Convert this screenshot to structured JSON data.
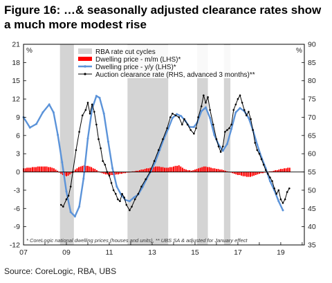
{
  "title": "Figure 16: …& seasonally adjusted clearance rates show a much more modest rise",
  "source": "Source:  CoreLogic, RBA, UBS",
  "chart_data": {
    "type": "line",
    "footnote": "* CoreLogic national dwelling prices (houses and units), ** UBS SA & adjusted for January effect",
    "left_axis": {
      "unit": "%",
      "ylim": [
        -12,
        21
      ],
      "ticks": [
        21,
        18,
        15,
        12,
        9,
        6,
        3,
        0,
        -3,
        -6,
        -9,
        -12
      ]
    },
    "right_axis": {
      "unit": "%",
      "ylim": [
        35,
        90
      ],
      "ticks": [
        90,
        85,
        80,
        75,
        70,
        65,
        60,
        55,
        50,
        45,
        40,
        35
      ]
    },
    "x_axis": {
      "xlim": [
        2007.0,
        2020.1
      ],
      "tick_labels": [
        "07",
        "09",
        "11",
        "13",
        "15",
        "17",
        "19"
      ],
      "tick_years": [
        2007,
        2009,
        2011,
        2013,
        2015,
        2017,
        2019
      ]
    },
    "legend": {
      "position": "top-center",
      "entries": [
        "RBA rate cut cycles",
        "Dwelling price - m/m (LHS)*",
        "Dwelling price - y/y (LHS)*",
        "Auction clearance rate (RHS, advanced 3 months)**"
      ]
    },
    "colors": {
      "rate_cut": "#d4d4d4",
      "mm": "#ff0000",
      "yy": "#5b93d9",
      "auction": "#000000"
    },
    "rate_cut_cycles": [
      [
        2008.7,
        2009.35
      ],
      [
        2011.85,
        2013.75
      ],
      [
        2015.1,
        2015.6
      ],
      [
        2016.35,
        2016.65
      ]
    ],
    "series": [
      {
        "name": "Dwelling price - y/y (LHS)*",
        "axis": "left",
        "points": [
          [
            2007.0,
            9.0
          ],
          [
            2007.3,
            7.3
          ],
          [
            2007.6,
            7.9
          ],
          [
            2007.9,
            9.8
          ],
          [
            2008.2,
            11.1
          ],
          [
            2008.4,
            9.8
          ],
          [
            2008.6,
            6.1
          ],
          [
            2008.8,
            1.6
          ],
          [
            2009.0,
            -3.2
          ],
          [
            2009.2,
            -6.6
          ],
          [
            2009.4,
            -7.3
          ],
          [
            2009.6,
            -5.7
          ],
          [
            2009.8,
            -1.1
          ],
          [
            2010.0,
            5.5
          ],
          [
            2010.2,
            10.4
          ],
          [
            2010.4,
            12.5
          ],
          [
            2010.55,
            12.2
          ],
          [
            2010.75,
            9.6
          ],
          [
            2010.95,
            5.0
          ],
          [
            2011.15,
            0.6
          ],
          [
            2011.35,
            -2.4
          ],
          [
            2011.55,
            -3.7
          ],
          [
            2011.75,
            -4.6
          ],
          [
            2011.95,
            -4.8
          ],
          [
            2012.15,
            -4.2
          ],
          [
            2012.35,
            -3.7
          ],
          [
            2012.55,
            -2.5
          ],
          [
            2012.75,
            -1.1
          ],
          [
            2012.95,
            0.2
          ],
          [
            2013.15,
            1.7
          ],
          [
            2013.35,
            3.6
          ],
          [
            2013.55,
            5.5
          ],
          [
            2013.75,
            7.1
          ],
          [
            2013.95,
            8.9
          ],
          [
            2014.15,
            9.5
          ],
          [
            2014.35,
            9.2
          ],
          [
            2014.55,
            8.4
          ],
          [
            2014.75,
            7.4
          ],
          [
            2014.95,
            7.4
          ],
          [
            2015.1,
            8.1
          ],
          [
            2015.3,
            10.0
          ],
          [
            2015.5,
            10.6
          ],
          [
            2015.7,
            8.9
          ],
          [
            2015.9,
            6.1
          ],
          [
            2016.1,
            4.5
          ],
          [
            2016.3,
            3.5
          ],
          [
            2016.5,
            4.6
          ],
          [
            2016.7,
            7.1
          ],
          [
            2016.9,
            9.8
          ],
          [
            2017.1,
            10.5
          ],
          [
            2017.3,
            10.0
          ],
          [
            2017.5,
            8.9
          ],
          [
            2017.7,
            6.9
          ],
          [
            2017.9,
            4.5
          ],
          [
            2018.1,
            2.4
          ],
          [
            2018.3,
            0.6
          ],
          [
            2018.5,
            -1.5
          ],
          [
            2018.7,
            -3.0
          ],
          [
            2018.9,
            -4.8
          ],
          [
            2019.1,
            -6.3
          ]
        ]
      },
      {
        "name": "Auction clearance rate (RHS, advanced 3 months)**",
        "axis": "right",
        "points": [
          [
            2008.75,
            46.0
          ],
          [
            2008.85,
            45.5
          ],
          [
            2009.0,
            47.5
          ],
          [
            2009.1,
            48.5
          ],
          [
            2009.2,
            51.0
          ],
          [
            2009.3,
            55.0
          ],
          [
            2009.45,
            61.0
          ],
          [
            2009.6,
            66.0
          ],
          [
            2009.75,
            70.5
          ],
          [
            2009.9,
            72.0
          ],
          [
            2010.0,
            74.0
          ],
          [
            2010.1,
            71.0
          ],
          [
            2010.2,
            73.5
          ],
          [
            2010.3,
            71.5
          ],
          [
            2010.4,
            68.0
          ],
          [
            2010.5,
            64.0
          ],
          [
            2010.6,
            61.5
          ],
          [
            2010.7,
            58.0
          ],
          [
            2010.8,
            57.0
          ],
          [
            2010.9,
            55.0
          ],
          [
            2011.0,
            54.0
          ],
          [
            2011.1,
            52.0
          ],
          [
            2011.2,
            50.0
          ],
          [
            2011.3,
            49.0
          ],
          [
            2011.4,
            47.5
          ],
          [
            2011.5,
            47.0
          ],
          [
            2011.6,
            49.0
          ],
          [
            2011.7,
            48.0
          ],
          [
            2011.8,
            46.0
          ],
          [
            2011.95,
            44.5
          ],
          [
            2012.05,
            45.5
          ],
          [
            2012.2,
            47.5
          ],
          [
            2012.35,
            49.0
          ],
          [
            2012.5,
            51.0
          ],
          [
            2012.7,
            53.0
          ],
          [
            2012.9,
            55.0
          ],
          [
            2013.1,
            58.0
          ],
          [
            2013.3,
            61.0
          ],
          [
            2013.5,
            64.0
          ],
          [
            2013.7,
            67.0
          ],
          [
            2013.85,
            70.0
          ],
          [
            2013.95,
            71.0
          ],
          [
            2014.1,
            70.5
          ],
          [
            2014.25,
            70.0
          ],
          [
            2014.4,
            68.0
          ],
          [
            2014.5,
            69.5
          ],
          [
            2014.65,
            68.0
          ],
          [
            2014.8,
            66.5
          ],
          [
            2014.95,
            65.5
          ],
          [
            2015.05,
            67.0
          ],
          [
            2015.15,
            70.0
          ],
          [
            2015.3,
            73.0
          ],
          [
            2015.4,
            76.0
          ],
          [
            2015.5,
            74.0
          ],
          [
            2015.6,
            75.5
          ],
          [
            2015.7,
            72.0
          ],
          [
            2015.85,
            68.0
          ],
          [
            2016.0,
            64.0
          ],
          [
            2016.1,
            62.0
          ],
          [
            2016.2,
            60.5
          ],
          [
            2016.3,
            62.0
          ],
          [
            2016.4,
            66.0
          ],
          [
            2016.5,
            66.5
          ],
          [
            2016.6,
            67.0
          ],
          [
            2016.7,
            68.0
          ],
          [
            2016.8,
            72.0
          ],
          [
            2016.9,
            73.5
          ],
          [
            2017.0,
            75.0
          ],
          [
            2017.1,
            76.0
          ],
          [
            2017.2,
            74.0
          ],
          [
            2017.3,
            72.0
          ],
          [
            2017.4,
            70.5
          ],
          [
            2017.5,
            71.5
          ],
          [
            2017.6,
            69.5
          ],
          [
            2017.7,
            66.5
          ],
          [
            2017.8,
            63.0
          ],
          [
            2017.9,
            61.0
          ],
          [
            2018.0,
            60.0
          ],
          [
            2018.1,
            58.5
          ],
          [
            2018.2,
            57.0
          ],
          [
            2018.3,
            55.5
          ],
          [
            2018.4,
            54.5
          ],
          [
            2018.5,
            53.5
          ],
          [
            2018.6,
            52.5
          ],
          [
            2018.7,
            50.5
          ],
          [
            2018.8,
            49.0
          ],
          [
            2018.9,
            50.0
          ],
          [
            2019.0,
            47.5
          ],
          [
            2019.1,
            46.5
          ],
          [
            2019.2,
            47.5
          ],
          [
            2019.3,
            49.5
          ],
          [
            2019.4,
            50.5
          ]
        ]
      },
      {
        "name": "Dwelling price - m/m (LHS)*",
        "axis": "left",
        "type": "bar",
        "start": 2007.0,
        "step": 0.08333,
        "values": [
          0.6,
          0.6,
          0.7,
          0.7,
          0.7,
          0.8,
          0.8,
          0.8,
          0.9,
          0.9,
          0.9,
          0.9,
          0.9,
          0.9,
          0.8,
          0.8,
          0.7,
          0.6,
          0.4,
          0.2,
          -0.1,
          -0.3,
          -0.5,
          -0.6,
          -0.7,
          -0.6,
          -0.4,
          -0.2,
          0.1,
          0.4,
          0.6,
          0.8,
          0.9,
          1.0,
          1.1,
          1.0,
          1.0,
          0.9,
          0.8,
          0.6,
          0.5,
          0.3,
          0.1,
          -0.1,
          -0.2,
          -0.3,
          -0.4,
          -0.4,
          -0.5,
          -0.5,
          -0.5,
          -0.5,
          -0.4,
          -0.4,
          -0.3,
          -0.3,
          -0.2,
          -0.2,
          -0.1,
          -0.1,
          0.0,
          0.1,
          0.1,
          0.2,
          0.2,
          0.3,
          0.4,
          0.4,
          0.5,
          0.6,
          0.6,
          0.7,
          0.8,
          0.8,
          0.9,
          0.9,
          0.9,
          0.8,
          0.8,
          0.7,
          0.7,
          0.7,
          0.8,
          0.8,
          0.9,
          1.0,
          1.0,
          1.1,
          0.9,
          0.7,
          0.5,
          0.4,
          0.3,
          0.3,
          0.2,
          0.3,
          0.4,
          0.5,
          0.6,
          0.7,
          0.8,
          0.9,
          0.9,
          0.8,
          0.8,
          0.7,
          0.6,
          0.6,
          0.5,
          0.5,
          0.4,
          0.4,
          0.3,
          0.2,
          0.1,
          0.0,
          -0.1,
          -0.2,
          -0.3,
          -0.4,
          -0.5,
          -0.5,
          -0.6,
          -0.7,
          -0.7,
          -0.8,
          -0.8,
          -0.8,
          -0.7,
          -0.6,
          -0.5,
          -0.4,
          -0.3,
          -0.2,
          -0.2,
          -0.1,
          -0.1,
          0.0,
          0.1,
          0.1,
          0.2,
          0.3,
          0.3,
          0.4,
          0.5,
          0.5,
          0.6,
          0.6,
          0.7,
          0.7
        ]
      }
    ],
    "footnote_marker": "*"
  }
}
